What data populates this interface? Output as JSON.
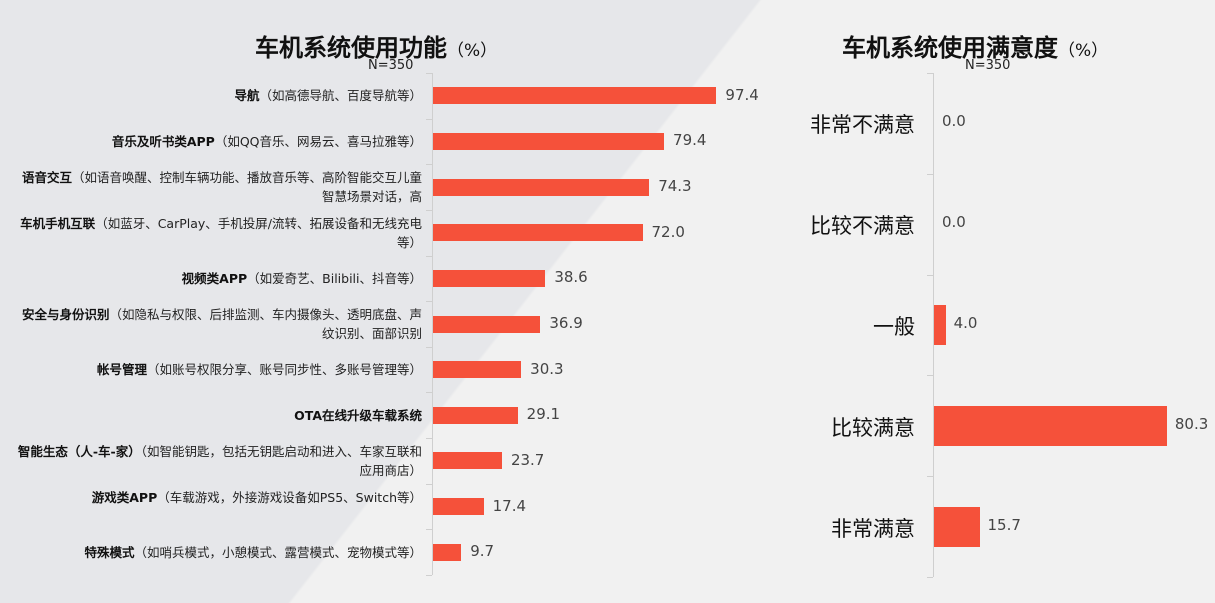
{
  "chart_data": [
    {
      "type": "bar",
      "orientation": "horizontal",
      "title": "车机系统使用功能",
      "title_unit": "（%）",
      "note": "N=350",
      "categories": [
        {
          "bold": "导航",
          "desc": "（如高德导航、百度导航等）"
        },
        {
          "bold": "音乐及听书类APP",
          "desc": "（如QQ音乐、网易云、喜马拉雅等）"
        },
        {
          "bold": "语音交互",
          "desc": "（如语音唤醒、控制车辆功能、播放音乐等、高阶智能交互儿童智慧场景对话，高"
        },
        {
          "bold": "车机手机互联",
          "desc": "（如蓝牙、CarPlay、手机投屏/流转、拓展设备和无线充电等）"
        },
        {
          "bold": "视频类APP",
          "desc": "（如爱奇艺、Bilibili、抖音等）"
        },
        {
          "bold": "安全与身份识别",
          "desc": "（如隐私与权限、后排监测、车内摄像头、透明底盘、声纹识别、面部识别"
        },
        {
          "bold": "帐号管理",
          "desc": "（如账号权限分享、账号同步性、多账号管理等）"
        },
        {
          "bold": "OTA在线升级车载系统",
          "desc": ""
        },
        {
          "bold": "智能生态（人-车-家）",
          "desc": "（如智能钥匙，包括无钥匙启动和进入、车家互联和应用商店）"
        },
        {
          "bold": "游戏类APP",
          "desc": "（车载游戏，外接游戏设备如PS5、Switch等）"
        },
        {
          "bold": "特殊模式",
          "desc": "（如哨兵模式，小憩模式、露营模式、宠物模式等）"
        }
      ],
      "values": [
        "97.4",
        "79.4",
        "74.3",
        "72.0",
        "38.6",
        "36.9",
        "30.3",
        "29.1",
        "23.7",
        "17.4",
        "9.7"
      ],
      "xlim": [
        0,
        100
      ],
      "color": "#f5513a"
    },
    {
      "type": "bar",
      "orientation": "horizontal",
      "title": "车机系统使用满意度",
      "title_unit": "（%）",
      "note": "N=350",
      "categories": [
        "非常不满意",
        "比较不满意",
        "一般",
        "比较满意",
        "非常满意"
      ],
      "values": [
        "0.0",
        "0.0",
        "4.0",
        "80.3",
        "15.7"
      ],
      "xlim": [
        0,
        100
      ],
      "color": "#f5513a"
    }
  ]
}
